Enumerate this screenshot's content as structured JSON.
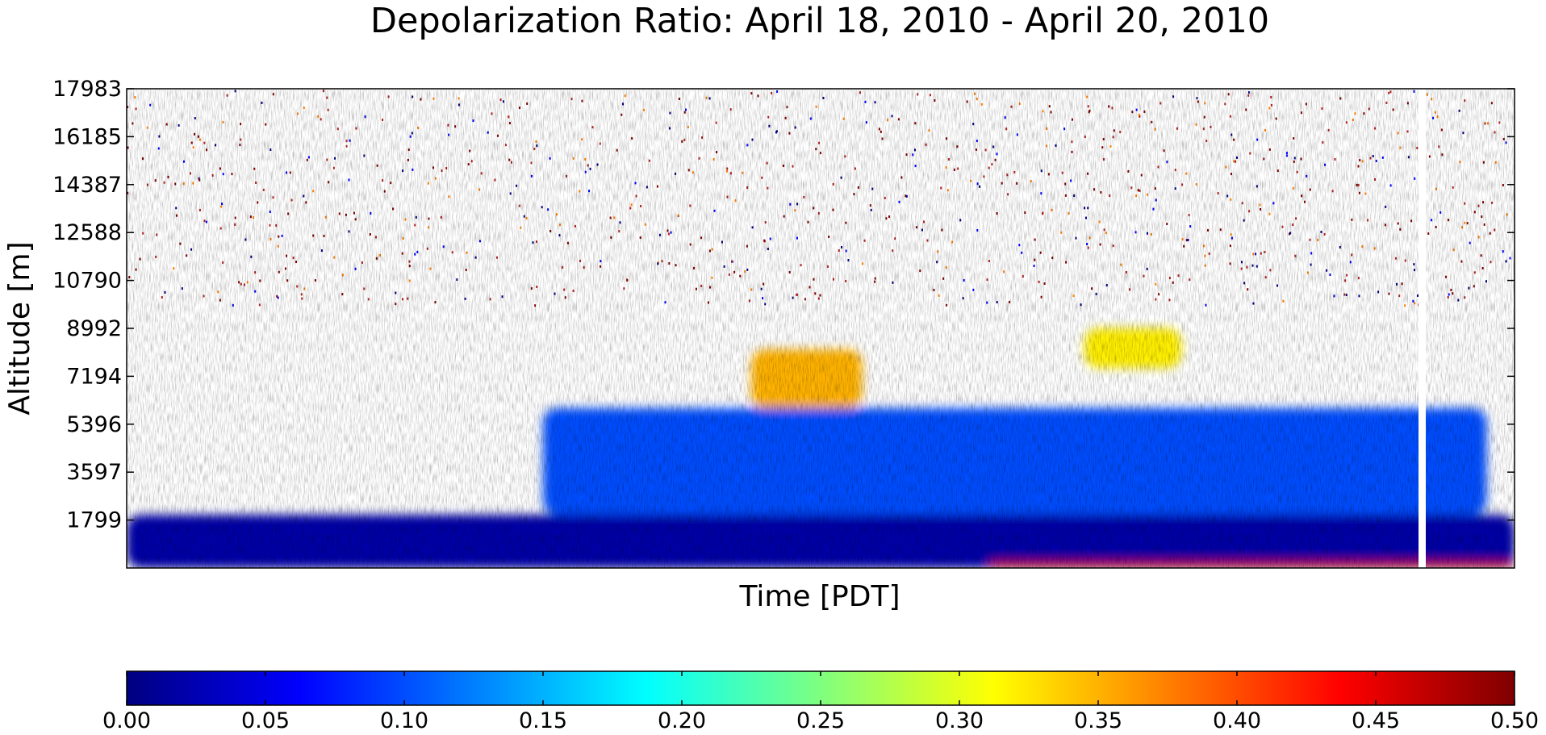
{
  "chart_data": {
    "type": "heatmap",
    "title": "Depolarization Ratio: April 18, 2010 - April 20, 2010",
    "xlabel": "Time [PDT]",
    "ylabel": "Altitude [m]",
    "x_tick_labels": [],
    "y_ticks": [
      1799,
      3597,
      5396,
      7194,
      8992,
      10790,
      12588,
      14387,
      16185,
      17983
    ],
    "ylim": [
      0,
      17983
    ],
    "grid": false,
    "colormap": "jet",
    "colorbar": {
      "orientation": "horizontal",
      "placement": "bottom",
      "range": [
        0.0,
        0.5
      ],
      "tick_labels": [
        "0.00",
        "0.05",
        "0.10",
        "0.15",
        "0.20",
        "0.25",
        "0.30",
        "0.35",
        "0.40",
        "0.45",
        "0.50"
      ],
      "colors": [
        "#00007f",
        "#0000ff",
        "#007fff",
        "#00ffff",
        "#7fff7f",
        "#ffff00",
        "#ff7f00",
        "#ff0000",
        "#7f0000"
      ]
    },
    "approximate_features": [
      {
        "description": "near-surface layer, low depolarization",
        "time_fraction": [
          0.0,
          1.0
        ],
        "altitude_m": [
          0,
          2000
        ],
        "value": 0.02
      },
      {
        "description": "broad aerosol layer",
        "time_fraction": [
          0.3,
          0.98
        ],
        "altitude_m": [
          2000,
          6000
        ],
        "value": 0.1
      },
      {
        "description": "high-depolarization patch",
        "time_fraction": [
          0.45,
          0.53
        ],
        "altitude_m": [
          6000,
          8200
        ],
        "value": 0.35
      },
      {
        "description": "high-depolarization patch",
        "time_fraction": [
          0.69,
          0.76
        ],
        "altitude_m": [
          7500,
          9000
        ],
        "value": 0.32
      },
      {
        "description": "high-depolarization surface strip",
        "time_fraction": [
          0.62,
          1.0
        ],
        "altitude_m": [
          0,
          300
        ],
        "value": 0.48
      }
    ]
  }
}
